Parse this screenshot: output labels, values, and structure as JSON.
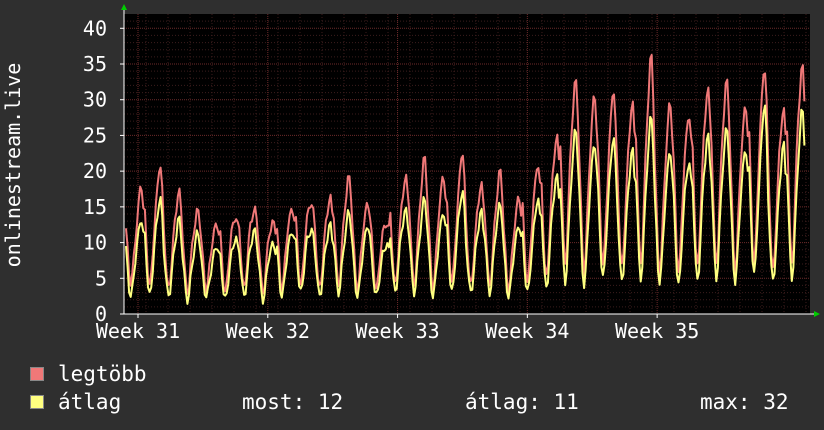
{
  "chart_data": {
    "type": "line",
    "ylabel": "onlinestream.live",
    "ylim": [
      0,
      42
    ],
    "yticks": [
      0,
      5,
      10,
      15,
      20,
      25,
      30,
      35,
      40
    ],
    "xticks": [
      "Week 31",
      "Week 32",
      "Week 33",
      "Week 34",
      "Week 35"
    ],
    "grid": true,
    "legend_position": "bottom-left",
    "colors": {
      "background": "#2f2f2f",
      "plot": "#000000",
      "grid": "#5a2a2a",
      "axis": "#ffffff"
    },
    "series": [
      {
        "name": "legtöbb",
        "color": "#f07878",
        "days": [
          [
            19,
            4.5,
            12
          ],
          [
            22,
            4,
            14
          ],
          [
            18,
            3.5,
            12
          ],
          [
            15,
            3,
            11
          ],
          [
            13,
            3.5,
            10
          ],
          [
            14,
            3,
            11
          ],
          [
            15,
            3.5,
            12
          ],
          [
            13,
            3,
            11
          ],
          [
            15,
            3.5,
            12
          ],
          [
            16,
            4,
            13
          ],
          [
            17,
            3.5,
            12
          ],
          [
            20,
            4,
            14
          ],
          [
            16,
            3.5,
            12
          ],
          [
            13,
            3.5,
            11
          ],
          [
            20,
            4,
            14
          ],
          [
            23,
            4,
            15
          ],
          [
            20,
            3.5,
            14
          ],
          [
            24,
            4.5,
            15
          ],
          [
            19,
            4,
            13
          ],
          [
            21,
            4,
            14
          ],
          [
            17,
            3.5,
            12
          ],
          [
            22,
            4.5,
            15
          ],
          [
            26,
            5,
            18
          ],
          [
            34,
            7,
            24
          ],
          [
            32,
            6,
            22
          ],
          [
            33,
            7,
            22
          ],
          [
            31,
            6.5,
            21
          ],
          [
            38,
            7,
            25
          ],
          [
            31,
            6,
            21
          ],
          [
            29,
            6,
            21
          ],
          [
            33,
            6.5,
            23
          ],
          [
            34,
            7,
            24
          ],
          [
            30,
            6,
            22
          ],
          [
            36,
            7,
            25
          ],
          [
            30,
            6,
            21
          ],
          [
            36,
            7,
            26
          ]
        ]
      },
      {
        "name": "átlag",
        "color": "#ffff80",
        "days": [
          [
            14,
            2.5,
            9
          ],
          [
            17,
            2.5,
            11
          ],
          [
            14,
            2.5,
            9
          ],
          [
            12,
            2,
            8
          ],
          [
            10,
            2.5,
            7
          ],
          [
            11,
            2,
            8
          ],
          [
            12,
            2.5,
            9
          ],
          [
            10,
            2,
            8
          ],
          [
            12,
            2.5,
            9
          ],
          [
            12,
            3,
            10
          ],
          [
            13,
            2.5,
            9
          ],
          [
            15,
            3,
            10
          ],
          [
            13,
            2.5,
            9
          ],
          [
            10,
            2.5,
            8
          ],
          [
            15,
            3,
            11
          ],
          [
            17,
            3,
            11
          ],
          [
            15,
            2.5,
            10
          ],
          [
            18,
            3,
            12
          ],
          [
            15,
            3,
            10
          ],
          [
            16,
            3,
            11
          ],
          [
            13,
            2.5,
            9
          ],
          [
            17,
            3,
            11
          ],
          [
            20,
            3.5,
            14
          ],
          [
            27,
            4.5,
            18
          ],
          [
            25,
            4,
            17
          ],
          [
            26,
            5,
            17
          ],
          [
            24,
            4.5,
            16
          ],
          [
            29,
            5,
            19
          ],
          [
            24,
            4.5,
            16
          ],
          [
            22,
            4,
            16
          ],
          [
            26,
            4.5,
            18
          ],
          [
            27,
            5,
            19
          ],
          [
            24,
            4.5,
            17
          ],
          [
            31,
            5.5,
            20
          ],
          [
            25,
            4.5,
            16
          ],
          [
            30,
            5,
            20
          ]
        ]
      }
    ]
  },
  "legend": {
    "max_label": "legtöbb",
    "avg_label": "átlag"
  },
  "stats": {
    "now": "most: 12",
    "avg": "átlag: 11",
    "max": "max: 32"
  }
}
